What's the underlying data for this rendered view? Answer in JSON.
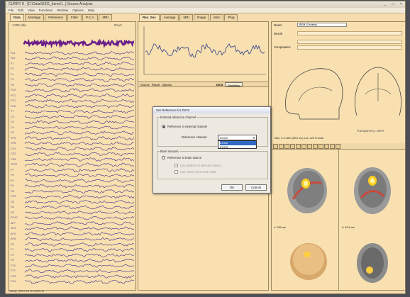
{
  "window": {
    "title": "CURRY 8 - [C:\\Data\\\\EEG_demo\\\\...]  Source Analysis",
    "buttons": [
      "_",
      "□",
      "×"
    ]
  },
  "menu": [
    "File",
    "Edit",
    "View",
    "Functions",
    "Window",
    "Options",
    "Help"
  ],
  "left_tabs": [
    "Data",
    "Montage",
    "Reference",
    "Filter",
    "P.C.A.",
    "MRI"
  ],
  "mid_tabs": [
    "Rec. Sec",
    "Average",
    "MRI",
    "Image",
    "Misc",
    "Plug"
  ],
  "channels": [
    "Fp1",
    "Fp2",
    "F7",
    "F3",
    "Fz",
    "F4",
    "F8",
    "FC5",
    "FC1",
    "FC2",
    "FC6",
    "T7",
    "C3",
    "Cz",
    "C4",
    "T8",
    "TP9",
    "CP5",
    "CP1",
    "CP2",
    "CP6",
    "TP10",
    "P7",
    "P3",
    "Pz",
    "P4",
    "P8",
    "PO9",
    "O1",
    "Oz",
    "O2",
    "PO10",
    "AF7",
    "AF3",
    "AF4",
    "AF8",
    "F5",
    "F1",
    "F2",
    "F6",
    "FT9",
    "FT7",
    "FC3",
    "FC4",
    "FT8"
  ],
  "left_top": {
    "time": "1.000 s/div",
    "amp": "50 µV"
  },
  "mid_subtabs": [
    "Source",
    "Result",
    "Options"
  ],
  "mid_toolbar": [
    "DICS",
    "Modeling"
  ],
  "right_fields": {
    "row1_label": "Model",
    "row1_value": "BEM (3 shells)",
    "row2_label": "Result",
    "row3_label": "Computation"
  },
  "head_label": "Transparency: 100%",
  "dialog": {
    "title": "Set Reference for DICS",
    "group1": "External reference channel",
    "radio1": "Reference to external channel",
    "sel_label": "Reference channel:",
    "sel_value": "EOG2",
    "drop_items": [
      "EOG2",
      "EOG3"
    ],
    "group2": "Brain sources",
    "radio2": "Reference to brain source",
    "chk1": "Use position of selected source",
    "chk2": "Use center of current result",
    "ok": "OK",
    "cancel": "Cancel"
  },
  "lower_panel": {
    "title": "Max: 2.4 nAm (69.6 ms)  Loc: Left Frontal",
    "time1": "t=  355 ms",
    "time2": "t=  69.6 ms"
  },
  "status": "Ready  |  EEG  64 ch  1000 Hz"
}
